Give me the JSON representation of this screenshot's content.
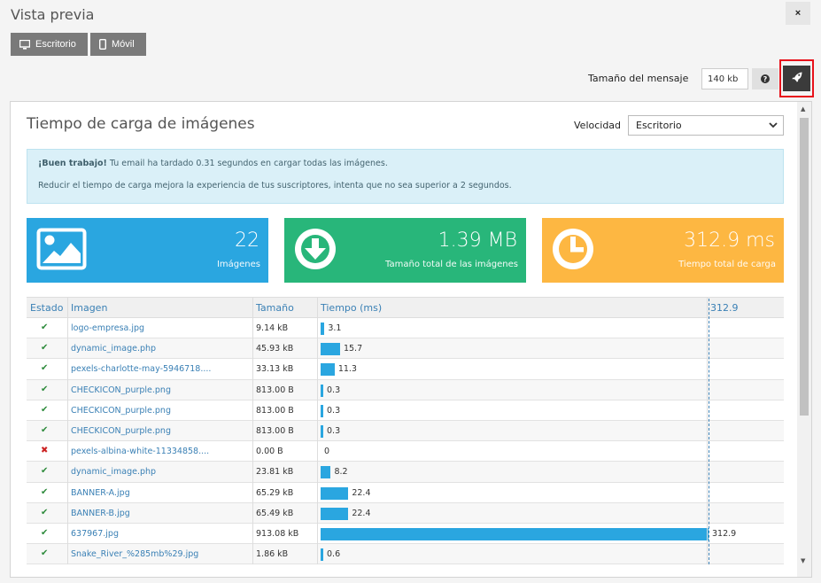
{
  "window": {
    "title": "Vista previa",
    "close_label": "×"
  },
  "view_buttons": [
    {
      "label": "Escritorio",
      "icon": "monitor-icon"
    },
    {
      "label": "Móvil",
      "icon": "mobile-icon"
    }
  ],
  "toolbar": {
    "size_label": "Tamaño del mensaje",
    "size_value": "140 kb",
    "help_icon": "question-icon",
    "rocket_icon": "rocket-icon"
  },
  "section": {
    "title": "Tiempo de carga de imágenes",
    "speed_label": "Velocidad",
    "speed_value": "Escritorio"
  },
  "info": {
    "bold": "¡Buen trabajo!",
    "line1": " Tu email ha tardado 0.31 segundos en cargar todas las imágenes.",
    "line2": "Reducir el tiempo de carga mejora la experiencia de tus suscriptores, intenta que no sea superior a 2 segundos."
  },
  "cards": [
    {
      "value": "22",
      "label": "Imágenes",
      "color": "#2aa6e0",
      "icon": "image-icon"
    },
    {
      "value": "1.39 MB",
      "label": "Tamaño total de las imágenes",
      "color": "#28b67a",
      "icon": "download-icon"
    },
    {
      "value": "312.9 ms",
      "label": "Tiempo total de carga",
      "color": "#fdb742",
      "icon": "clock-icon"
    }
  ],
  "table": {
    "headers": {
      "status": "Estado",
      "image": "Imagen",
      "size": "Tamaño",
      "time": "Tiempo (ms)",
      "max": "312.9"
    },
    "max_time": 312.9,
    "rows": [
      {
        "ok": true,
        "image": "logo-empresa.jpg",
        "size": "9.14 kB",
        "time": 3.1,
        "time_label": "3.1"
      },
      {
        "ok": true,
        "image": "dynamic_image.php",
        "size": "45.93 kB",
        "time": 15.7,
        "time_label": "15.7"
      },
      {
        "ok": true,
        "image": "pexels-charlotte-may-5946718....",
        "size": "33.13 kB",
        "time": 11.3,
        "time_label": "11.3"
      },
      {
        "ok": true,
        "image": "CHECKICON_purple.png",
        "size": "813.00 B",
        "time": 0.3,
        "time_label": "0.3"
      },
      {
        "ok": true,
        "image": "CHECKICON_purple.png",
        "size": "813.00 B",
        "time": 0.3,
        "time_label": "0.3"
      },
      {
        "ok": true,
        "image": "CHECKICON_purple.png",
        "size": "813.00 B",
        "time": 0.3,
        "time_label": "0.3"
      },
      {
        "ok": false,
        "image": "pexels-albina-white-11334858....",
        "size": "0.00 B",
        "time": 0,
        "time_label": "0"
      },
      {
        "ok": true,
        "image": "dynamic_image.php",
        "size": "23.81 kB",
        "time": 8.2,
        "time_label": "8.2"
      },
      {
        "ok": true,
        "image": "BANNER-A.jpg",
        "size": "65.29 kB",
        "time": 22.4,
        "time_label": "22.4"
      },
      {
        "ok": true,
        "image": "BANNER-B.jpg",
        "size": "65.49 kB",
        "time": 22.4,
        "time_label": "22.4"
      },
      {
        "ok": true,
        "image": "637967.jpg",
        "size": "913.08 kB",
        "time": 312.9,
        "time_label": "312.9"
      },
      {
        "ok": true,
        "image": "Snake_River_%285mb%29.jpg",
        "size": "1.86 kB",
        "time": 0.6,
        "time_label": "0.6"
      }
    ]
  }
}
